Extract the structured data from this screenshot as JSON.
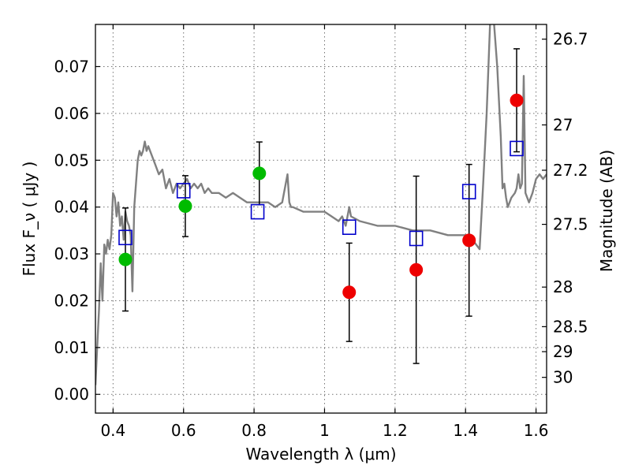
{
  "chart_data": {
    "type": "scatter",
    "xlabel": "Wavelength λ (μm)",
    "ylabel_left": "Flux F_ν ( μJy )",
    "ylabel_right": "Magnitude (AB)",
    "xlim": [
      0.35,
      1.63
    ],
    "ylim": [
      -0.004,
      0.079
    ],
    "grid": true,
    "x_ticks": [
      0.4,
      0.6,
      0.8,
      1.0,
      1.2,
      1.4,
      1.6
    ],
    "x_tick_labels": [
      "0.4",
      "0.6",
      "0.8",
      "1",
      "1.2",
      "1.4",
      "1.6"
    ],
    "y_ticks": [
      0.0,
      0.01,
      0.02,
      0.03,
      0.04,
      0.05,
      0.06,
      0.07
    ],
    "y_tick_labels": [
      "0.00",
      "0.01",
      "0.02",
      "0.03",
      "0.04",
      "0.05",
      "0.06",
      "0.07"
    ],
    "right_ticks": [
      {
        "label": "26.7",
        "mag": 26.7
      },
      {
        "label": "27",
        "mag": 27.0
      },
      {
        "label": "27.2",
        "mag": 27.2
      },
      {
        "label": "27.5",
        "mag": 27.5
      },
      {
        "label": "28",
        "mag": 28.0
      },
      {
        "label": "28.5",
        "mag": 28.5
      },
      {
        "label": "29",
        "mag": 29.0
      },
      {
        "label": "30",
        "mag": 30.0
      }
    ],
    "series": [
      {
        "name": "",
        "kind": "line",
        "color": "#808080",
        "x": [
          0.35,
          0.355,
          0.36,
          0.365,
          0.37,
          0.375,
          0.38,
          0.385,
          0.39,
          0.395,
          0.4,
          0.405,
          0.41,
          0.415,
          0.42,
          0.425,
          0.43,
          0.435,
          0.44,
          0.445,
          0.45,
          0.455,
          0.46,
          0.465,
          0.47,
          0.475,
          0.48,
          0.485,
          0.49,
          0.495,
          0.5,
          0.51,
          0.52,
          0.53,
          0.54,
          0.55,
          0.56,
          0.57,
          0.58,
          0.59,
          0.6,
          0.61,
          0.62,
          0.63,
          0.64,
          0.65,
          0.66,
          0.67,
          0.68,
          0.7,
          0.72,
          0.74,
          0.76,
          0.78,
          0.8,
          0.82,
          0.84,
          0.86,
          0.88,
          0.895,
          0.9,
          0.905,
          0.91,
          0.94,
          0.96,
          0.98,
          1.0,
          1.02,
          1.04,
          1.05,
          1.06,
          1.07,
          1.075,
          1.1,
          1.15,
          1.2,
          1.25,
          1.3,
          1.35,
          1.38,
          1.4,
          1.41,
          1.42,
          1.43,
          1.44,
          1.45,
          1.46,
          1.47,
          1.48,
          1.49,
          1.5,
          1.505,
          1.51,
          1.515,
          1.52,
          1.53,
          1.54,
          1.545,
          1.55,
          1.555,
          1.56,
          1.565,
          1.57,
          1.58,
          1.59,
          1.6,
          1.61,
          1.62,
          1.63
        ],
        "values": [
          0.002,
          0.01,
          0.018,
          0.028,
          0.02,
          0.032,
          0.03,
          0.033,
          0.031,
          0.034,
          0.043,
          0.042,
          0.038,
          0.041,
          0.036,
          0.038,
          0.033,
          0.039,
          0.037,
          0.036,
          0.034,
          0.022,
          0.04,
          0.045,
          0.05,
          0.052,
          0.051,
          0.052,
          0.054,
          0.052,
          0.053,
          0.051,
          0.049,
          0.047,
          0.048,
          0.044,
          0.046,
          0.043,
          0.045,
          0.044,
          0.045,
          0.046,
          0.044,
          0.045,
          0.044,
          0.045,
          0.043,
          0.044,
          0.043,
          0.043,
          0.042,
          0.043,
          0.042,
          0.041,
          0.041,
          0.041,
          0.041,
          0.04,
          0.041,
          0.047,
          0.041,
          0.04,
          0.04,
          0.039,
          0.039,
          0.039,
          0.039,
          0.038,
          0.037,
          0.038,
          0.036,
          0.04,
          0.038,
          0.037,
          0.036,
          0.036,
          0.035,
          0.035,
          0.034,
          0.034,
          0.034,
          0.033,
          0.033,
          0.032,
          0.031,
          0.045,
          0.06,
          0.08,
          0.08,
          0.07,
          0.055,
          0.044,
          0.045,
          0.042,
          0.04,
          0.042,
          0.043,
          0.044,
          0.047,
          0.044,
          0.045,
          0.068,
          0.043,
          0.041,
          0.043,
          0.046,
          0.047,
          0.046,
          0.047
        ]
      },
      {
        "name": "",
        "kind": "open-square",
        "color": "#0000cc",
        "x": [
          0.435,
          0.6,
          0.81,
          1.07,
          1.26,
          1.41,
          1.545
        ],
        "values": [
          0.0335,
          0.0435,
          0.039,
          0.0357,
          0.0333,
          0.0433,
          0.0525
        ]
      },
      {
        "name": "",
        "kind": "filled-circle",
        "color": "#00bb00",
        "x": [
          0.435,
          0.605,
          0.815
        ],
        "values": [
          0.0288,
          0.0402,
          0.0472
        ],
        "errors": [
          0.011,
          0.0065,
          0.0067
        ]
      },
      {
        "name": "",
        "kind": "filled-circle",
        "color": "#ee0000",
        "x": [
          1.07,
          1.26,
          1.41,
          1.545
        ],
        "values": [
          0.0218,
          0.0266,
          0.0329,
          0.0628
        ],
        "errors": [
          0.0105,
          0.02,
          0.0162,
          0.011
        ]
      }
    ]
  }
}
